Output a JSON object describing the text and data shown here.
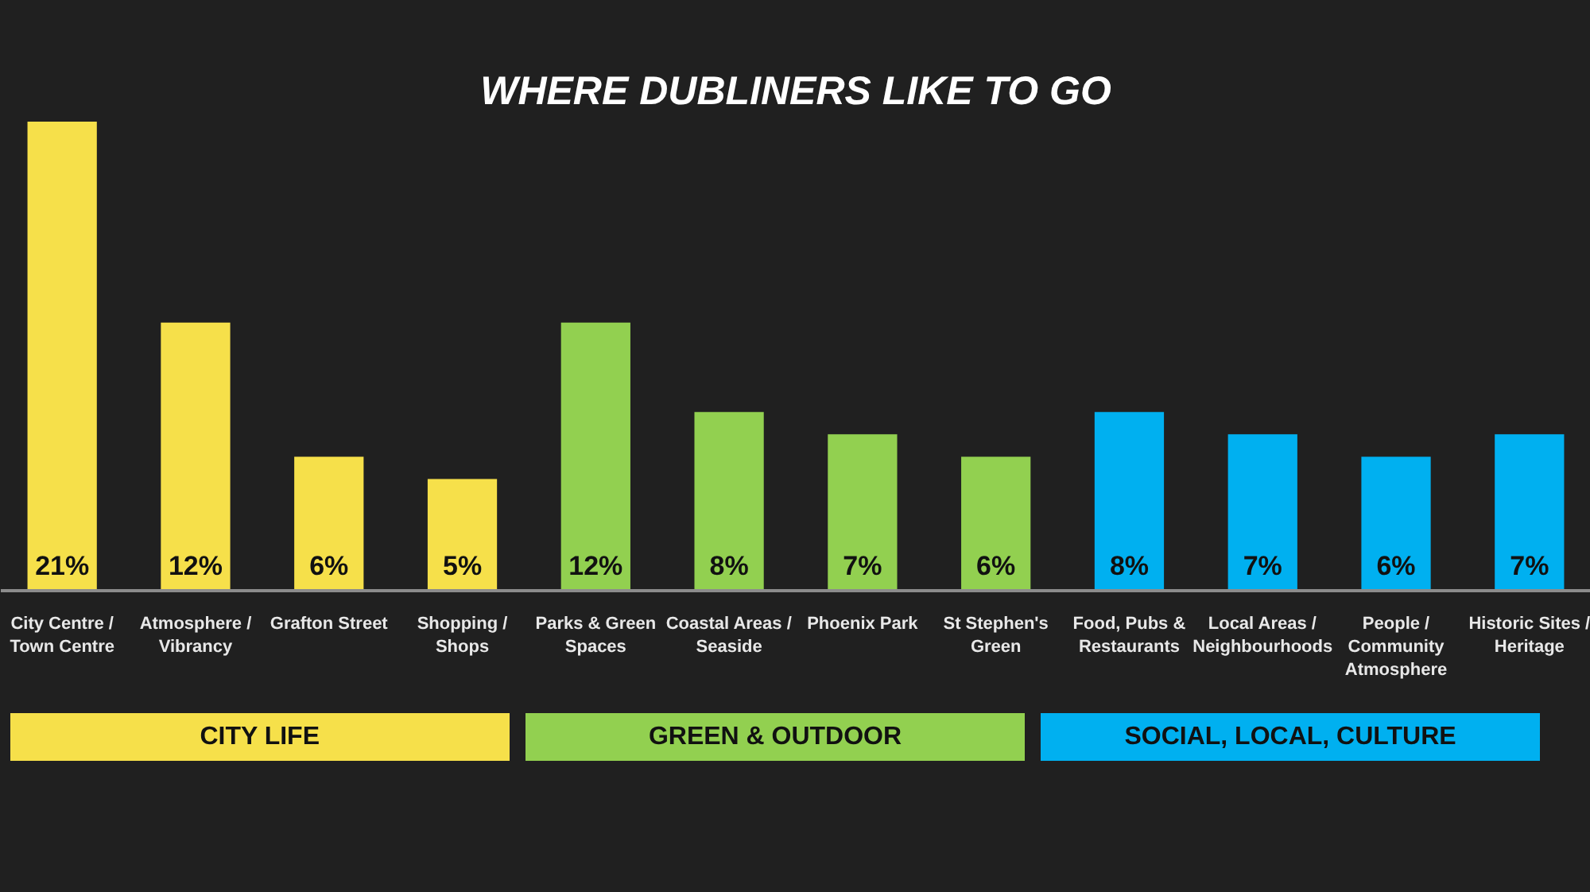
{
  "chart_data": {
    "type": "bar",
    "title": "WHERE DUBLINERS LIKE TO GO",
    "categories": [
      "City Centre / Town Centre",
      "Atmosphere / Vibrancy",
      "Grafton Street",
      "Shopping / Shops",
      "Parks & Green Spaces",
      "Coastal Areas / Seaside",
      "Phoenix Park",
      "St Stephen's Green",
      "Food, Pubs & Restaurants",
      "Local Areas / Neighbourhoods",
      "People / Community Atmosphere",
      "Historic Sites / Heritage"
    ],
    "series": [
      {
        "name": "CITY LIFE",
        "color": "#f6e04a",
        "values": [
          21,
          12,
          6,
          5,
          null,
          null,
          null,
          null,
          null,
          null,
          null,
          null
        ],
        "value_labels": [
          "21%",
          "12%",
          "6%",
          "5%",
          null,
          null,
          null,
          null,
          null,
          null,
          null,
          null
        ]
      },
      {
        "name": "GREEN & OUTDOOR",
        "color": "#92d050",
        "values": [
          null,
          null,
          null,
          null,
          12,
          8,
          7,
          6,
          null,
          null,
          null,
          null
        ],
        "value_labels": [
          null,
          null,
          null,
          null,
          "12%",
          "8%",
          "7%",
          "6%",
          null,
          null,
          null,
          null
        ]
      },
      {
        "name": "SOCIAL, LOCAL, CULTURE",
        "color": "#00b0f0",
        "values": [
          null,
          null,
          null,
          null,
          null,
          null,
          null,
          null,
          8,
          7,
          6,
          7
        ],
        "value_labels": [
          null,
          null,
          null,
          null,
          null,
          null,
          null,
          null,
          "8%",
          "7%",
          "6%",
          "7%"
        ]
      }
    ],
    "tick_labels": "x",
    "legend": "bottom"
  }
}
